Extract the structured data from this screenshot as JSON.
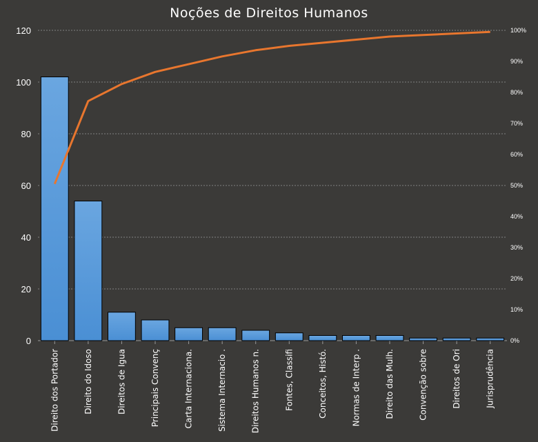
{
  "chart_data": {
    "type": "bar",
    "title": "Noções de Direitos Humanos",
    "xlabel": "",
    "ylabel": "",
    "categories": [
      "Direito dos Portador",
      "Direito do Idoso",
      "Direitos de Igua",
      "Principais Convenç",
      "Carta Internaciona.",
      "Sistema Internacio .",
      "Direitos Humanos n.",
      "Fontes, Classifi",
      "Conceitos, Histó.",
      "Normas de Interp .",
      "Direito das Mulh.",
      "Convenção sobre",
      "Direitos de Ori",
      "Jurisprudência"
    ],
    "series": [
      {
        "type": "bar",
        "values": [
          102,
          54,
          11,
          8,
          5,
          5,
          4,
          3,
          2,
          2,
          2,
          1,
          1,
          1
        ]
      },
      {
        "type": "line",
        "axis": "right",
        "values": [
          50.5,
          77.2,
          82.7,
          86.6,
          89.1,
          91.6,
          93.6,
          95.0,
          96.0,
          97.0,
          98.0,
          98.5,
          99.0,
          99.5
        ]
      }
    ],
    "ylim": [
      0,
      120
    ],
    "yticks": [
      "0",
      "20",
      "40",
      "60",
      "80",
      "100",
      "120"
    ],
    "y2lim": [
      0,
      100
    ],
    "y2ticks": [
      "0%",
      "10%",
      "20%",
      "30%",
      "40%",
      "50%",
      "60%",
      "70%",
      "80%",
      "90%",
      "100%"
    ],
    "grid": true,
    "colors": {
      "bar": "#4a8fd4",
      "bar_top": "#6aa6e0",
      "line": "#e8762e",
      "background": "#3b3a38",
      "text": "#ffffff",
      "grid": "#9a9a9a"
    }
  }
}
